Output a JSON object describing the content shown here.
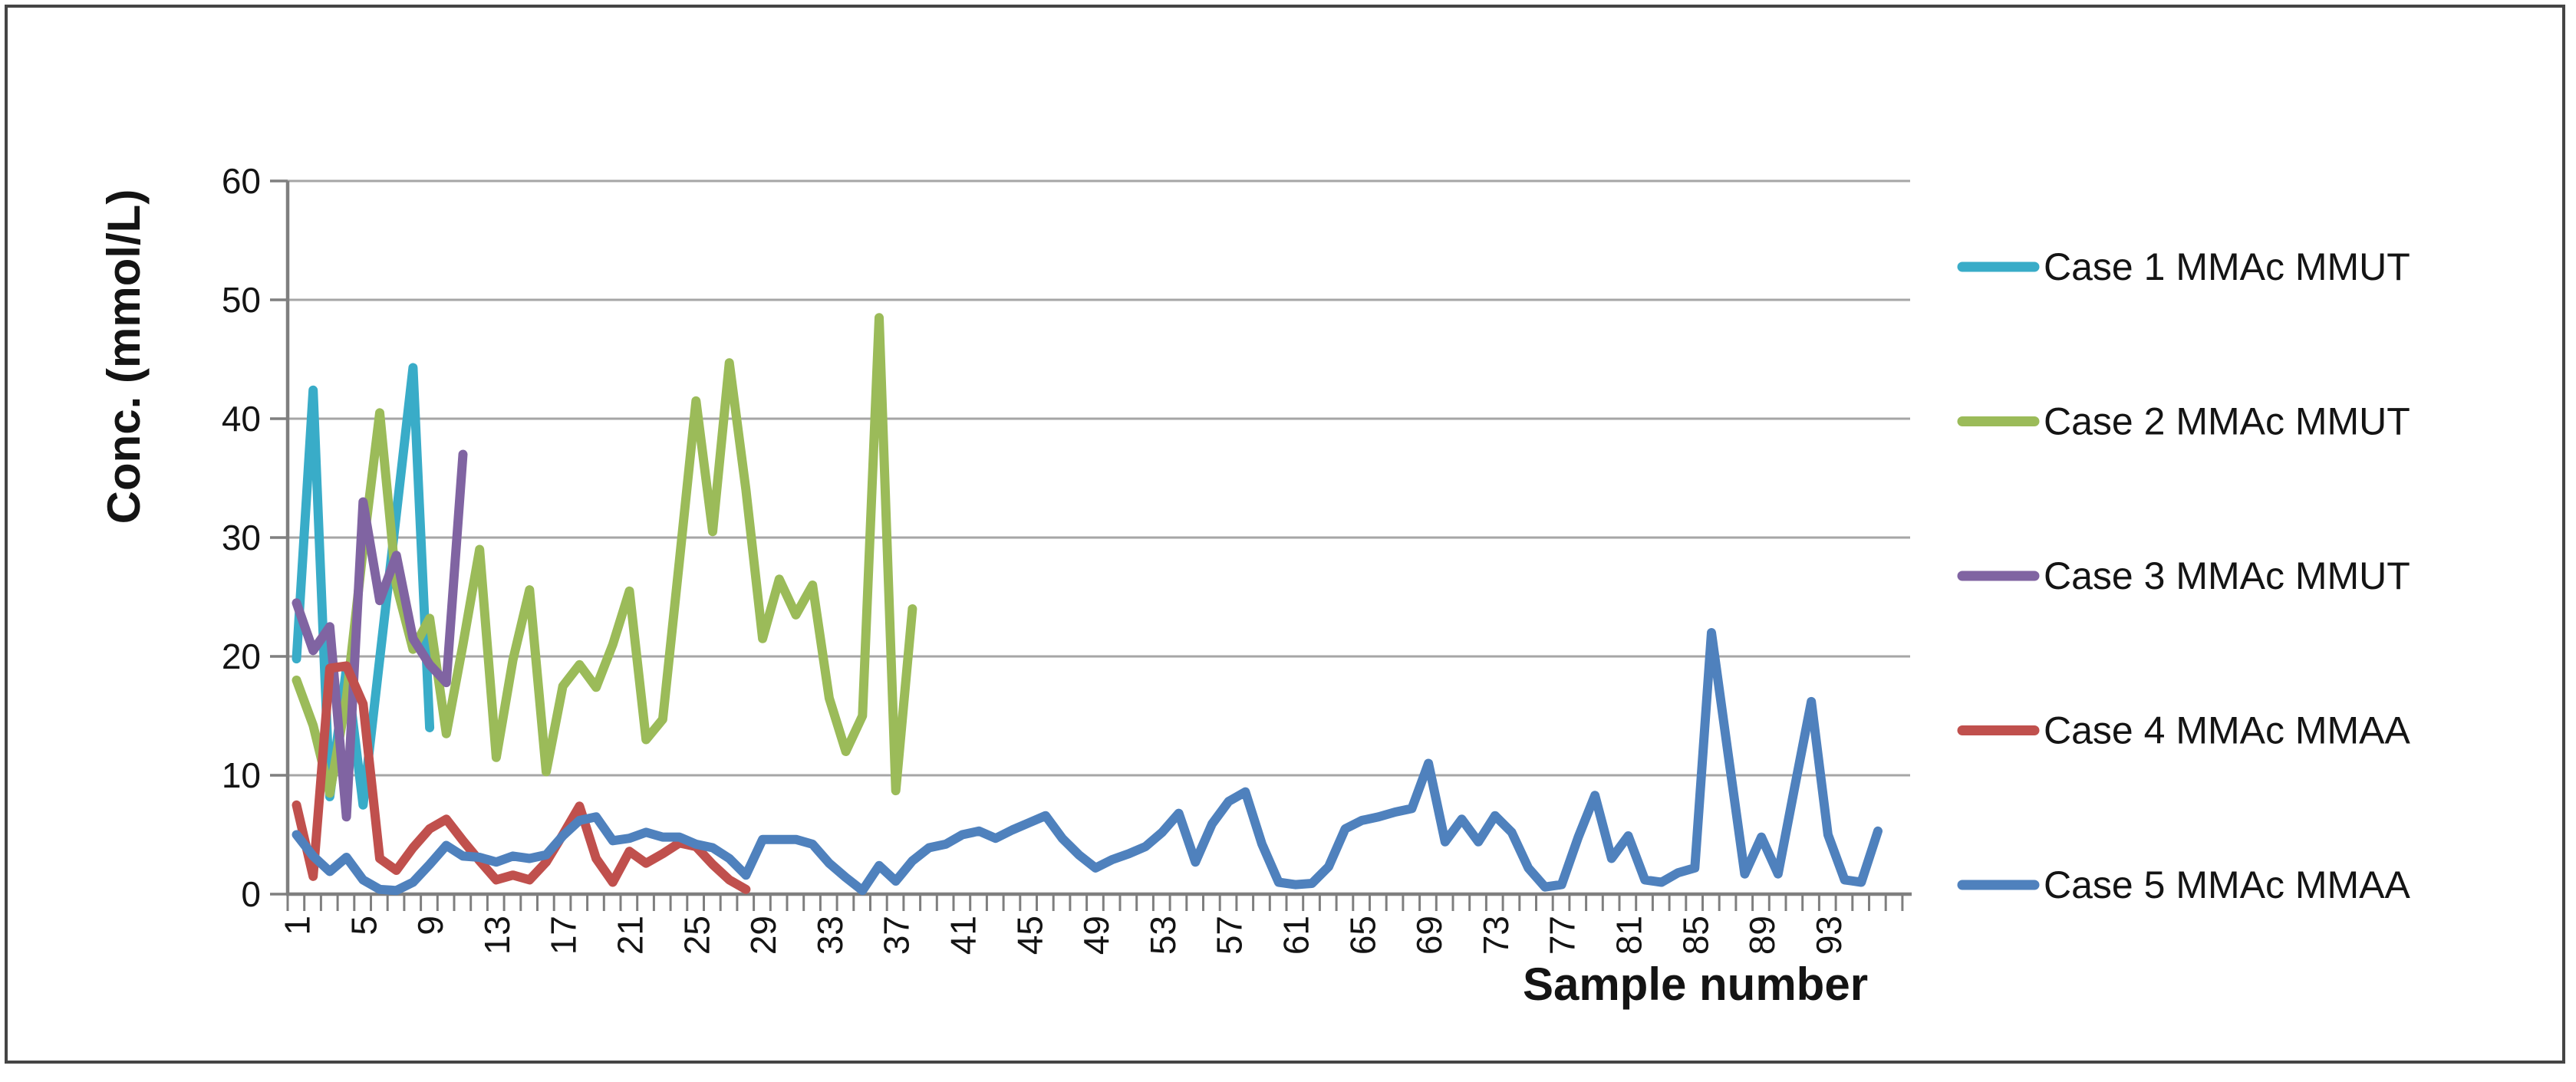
{
  "chart_data": {
    "type": "line",
    "title": "",
    "xlabel": "Sample number",
    "ylabel": "Conc. (mmol/L)",
    "ylim": [
      0,
      60
    ],
    "yticks": [
      0,
      10,
      20,
      30,
      40,
      50,
      60
    ],
    "xtick_labels": [
      1,
      5,
      9,
      13,
      17,
      21,
      25,
      29,
      33,
      37,
      41,
      45,
      49,
      53,
      57,
      61,
      65,
      69,
      73,
      77,
      81,
      85,
      89,
      93
    ],
    "x_categories_total": 97,
    "grid": true,
    "legend_position": "right",
    "colors": {
      "gridline": "#A6A6A6",
      "axis": "#7F7F7F",
      "text": "#141414",
      "background": "#FFFFFF"
    },
    "series": [
      {
        "name": "Case 1 MMAc MMUT",
        "color": "#39ACC8",
        "start_sample": 1,
        "values": [
          19.8,
          42.4,
          8.2,
          19,
          7.5,
          19.8,
          32,
          44.3,
          14
        ]
      },
      {
        "name": "Case 2 MMAc MMUT",
        "color": "#9BBB59",
        "start_sample": 1,
        "values": [
          18,
          14.2,
          8.5,
          16.5,
          29,
          40.5,
          26,
          20.6,
          23.2,
          13.5,
          21,
          29,
          11.5,
          19.7,
          25.6,
          10.3,
          17.5,
          19.3,
          17.4,
          21,
          25.5,
          13,
          14.7,
          28,
          41.5,
          30.5,
          44.7,
          34,
          21.5,
          26.5,
          23.5,
          26,
          16.5,
          12,
          15,
          48.5,
          8.7,
          24
        ]
      },
      {
        "name": "Case 3 MMAc MMUT",
        "color": "#8064A2",
        "start_sample": 1,
        "values": [
          24.5,
          20.5,
          22.5,
          6.5,
          33,
          24.7,
          28.5,
          21.5,
          19.3,
          17.8,
          37
        ]
      },
      {
        "name": "Case 4 MMAc MMAA",
        "color": "#C0504D",
        "start_sample": 1,
        "values": [
          7.5,
          1.5,
          19,
          19.2,
          16,
          3,
          2,
          3.9,
          5.5,
          6.3,
          4.5,
          2.8,
          1.2,
          1.6,
          1.2,
          2.7,
          5,
          7.4,
          3,
          1.0,
          3.6,
          2.6,
          3.4,
          4.3,
          4.0,
          2.5,
          1.2,
          0.4
        ]
      },
      {
        "name": "Case 5 MMAc MMAA",
        "color": "#4F81BD",
        "start_sample": 1,
        "values": [
          5,
          3.2,
          1.9,
          3.1,
          1.2,
          0.4,
          0.3,
          1.0,
          2.5,
          4.1,
          3.2,
          3.1,
          2.7,
          3.2,
          3.0,
          3.3,
          4.9,
          6.2,
          6.5,
          4.5,
          4.7,
          5.2,
          4.8,
          4.8,
          4.2,
          3.9,
          3.0,
          1.6,
          4.6,
          4.6,
          4.6,
          4.2,
          2.6,
          1.4,
          0.3,
          2.4,
          1.1,
          2.8,
          3.9,
          4.2,
          5.0,
          5.3,
          4.7,
          5.4,
          6.0,
          6.6,
          4.7,
          3.3,
          2.2,
          2.9,
          3.4,
          4.0,
          5.2,
          6.8,
          2.7,
          5.9,
          7.8,
          8.6,
          4.2,
          1.0,
          0.8,
          0.9,
          2.3,
          5.5,
          6.2,
          6.5,
          6.9,
          7.2,
          11.0,
          4.4,
          6.3,
          4.4,
          6.6,
          5.2,
          2.2,
          0.6,
          0.8,
          4.8,
          8.3,
          3.0,
          4.9,
          1.2,
          1.0,
          1.8,
          2.2,
          22.0,
          11.8,
          1.7,
          4.8,
          1.7,
          9.0,
          16.2,
          5.0,
          1.2,
          1.0,
          5.3
        ]
      }
    ],
    "legend": [
      {
        "label": "Case 1 MMAc MMUT",
        "color": "#39ACC8"
      },
      {
        "label": "Case 2 MMAc MMUT",
        "color": "#9BBB59"
      },
      {
        "label": "Case 3 MMAc MMUT",
        "color": "#8064A2"
      },
      {
        "label": "Case 4 MMAc MMAA",
        "color": "#C0504D"
      },
      {
        "label": "Case 5 MMAc MMAA",
        "color": "#4F81BD"
      }
    ]
  }
}
